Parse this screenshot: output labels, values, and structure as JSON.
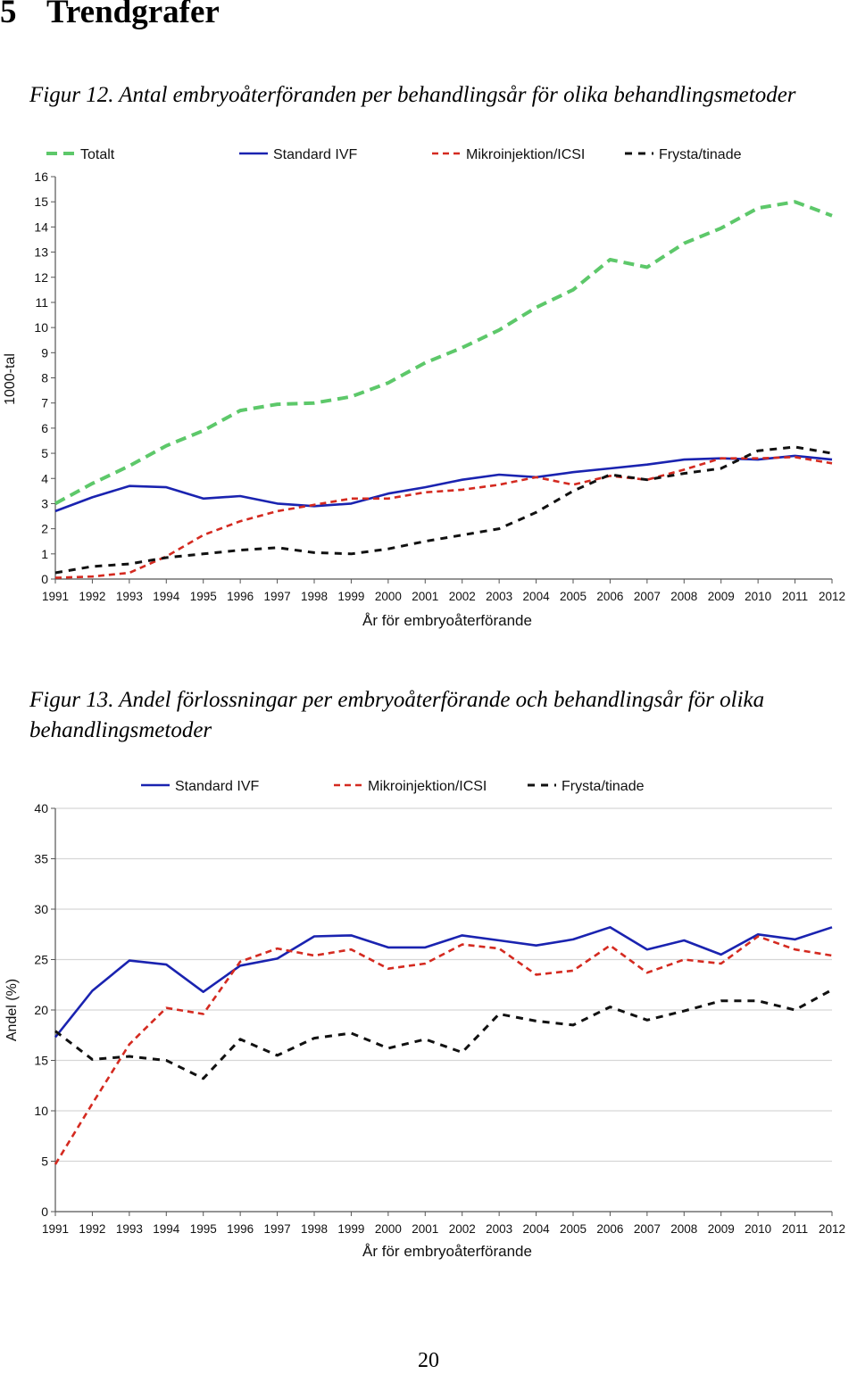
{
  "page": {
    "section_number": "5",
    "section_title": "Trendgrafer",
    "page_number": "20"
  },
  "figures": [
    {
      "label": "Figur 12.",
      "caption": "Antal embryoåterföranden per behandlingsår för olika behandlingsmetoder"
    },
    {
      "label": "Figur 13.",
      "caption": "Andel förlossningar per embryoåterförande och behandlingsår för olika behandlingsmetoder"
    }
  ],
  "chart_data": [
    {
      "type": "line",
      "xlabel": "År för embryoåterförande",
      "ylabel": "1000-tal",
      "ylim": [
        0,
        16
      ],
      "yticks": [
        0,
        1,
        2,
        3,
        4,
        5,
        6,
        7,
        8,
        9,
        10,
        11,
        12,
        13,
        14,
        15,
        16
      ],
      "grid": false,
      "legend_position": "top",
      "x": [
        "1991",
        "1992",
        "1993",
        "1994",
        "1995",
        "1996",
        "1997",
        "1998",
        "1999",
        "2000",
        "2001",
        "2002",
        "2003",
        "2004",
        "2005",
        "2006",
        "2007",
        "2008",
        "2009",
        "2010",
        "2011",
        "2012"
      ],
      "series": [
        {
          "name": "Totalt",
          "color": "#5dc86a",
          "style": "dashed",
          "width": 4,
          "values": [
            3.0,
            3.8,
            4.5,
            5.3,
            5.9,
            6.7,
            6.95,
            7.0,
            7.25,
            7.8,
            8.6,
            9.2,
            9.9,
            10.8,
            11.5,
            12.7,
            12.4,
            13.35,
            13.95,
            14.75,
            15.0,
            14.45
          ]
        },
        {
          "name": "Standard IVF",
          "color": "#1a23b0",
          "style": "solid",
          "width": 2.6,
          "values": [
            2.7,
            3.25,
            3.7,
            3.65,
            3.2,
            3.3,
            3.0,
            2.9,
            3.0,
            3.4,
            3.65,
            3.95,
            4.15,
            4.05,
            4.25,
            4.4,
            4.55,
            4.75,
            4.8,
            4.75,
            4.9,
            4.75
          ]
        },
        {
          "name": "Mikroinjektion/ICSI",
          "color": "#d42a20",
          "style": "dashed",
          "width": 2.6,
          "values": [
            0.05,
            0.1,
            0.25,
            0.9,
            1.75,
            2.3,
            2.7,
            2.95,
            3.2,
            3.2,
            3.45,
            3.55,
            3.75,
            4.05,
            3.75,
            4.1,
            3.95,
            4.35,
            4.8,
            4.8,
            4.85,
            4.6
          ]
        },
        {
          "name": "Frysta/tinade",
          "color": "#111111",
          "style": "dashed",
          "width": 3,
          "values": [
            0.25,
            0.5,
            0.6,
            0.85,
            1.0,
            1.15,
            1.25,
            1.05,
            1.0,
            1.2,
            1.5,
            1.75,
            2.0,
            2.65,
            3.5,
            4.15,
            3.95,
            4.2,
            4.4,
            5.1,
            5.25,
            5.0
          ]
        }
      ]
    },
    {
      "type": "line",
      "xlabel": "År för embryoåterförande",
      "ylabel": "Andel (%)",
      "ylim": [
        0,
        40
      ],
      "yticks": [
        0,
        5,
        10,
        15,
        20,
        25,
        30,
        35,
        40
      ],
      "grid": true,
      "legend_position": "top",
      "x": [
        "1991",
        "1992",
        "1993",
        "1994",
        "1995",
        "1996",
        "1997",
        "1998",
        "1999",
        "2000",
        "2001",
        "2002",
        "2003",
        "2004",
        "2005",
        "2006",
        "2007",
        "2008",
        "2009",
        "2010",
        "2011",
        "2012"
      ],
      "series": [
        {
          "name": "Standard IVF",
          "color": "#1a23b0",
          "style": "solid",
          "width": 2.6,
          "values": [
            17.3,
            21.9,
            24.9,
            24.5,
            21.8,
            24.4,
            25.1,
            27.3,
            27.4,
            26.2,
            26.2,
            27.4,
            26.9,
            26.4,
            27.0,
            28.2,
            26.0,
            26.9,
            25.5,
            27.5,
            27.0,
            28.2
          ]
        },
        {
          "name": "Mikroinjektion/ICSI",
          "color": "#d42a20",
          "style": "dashed",
          "width": 2.6,
          "values": [
            4.7,
            10.7,
            16.6,
            20.2,
            19.6,
            24.8,
            26.1,
            25.4,
            26.0,
            24.1,
            24.6,
            26.5,
            26.1,
            23.5,
            23.9,
            26.4,
            23.7,
            25.0,
            24.6,
            27.3,
            26.0,
            25.4
          ]
        },
        {
          "name": "Frysta/tinade",
          "color": "#111111",
          "style": "dashed",
          "width": 3,
          "values": [
            17.9,
            15.1,
            15.4,
            15.0,
            13.2,
            17.1,
            15.5,
            17.2,
            17.7,
            16.2,
            17.1,
            15.8,
            19.6,
            18.9,
            18.5,
            20.3,
            19.0,
            19.9,
            20.9,
            20.9,
            20.0,
            22.0
          ]
        }
      ]
    }
  ]
}
